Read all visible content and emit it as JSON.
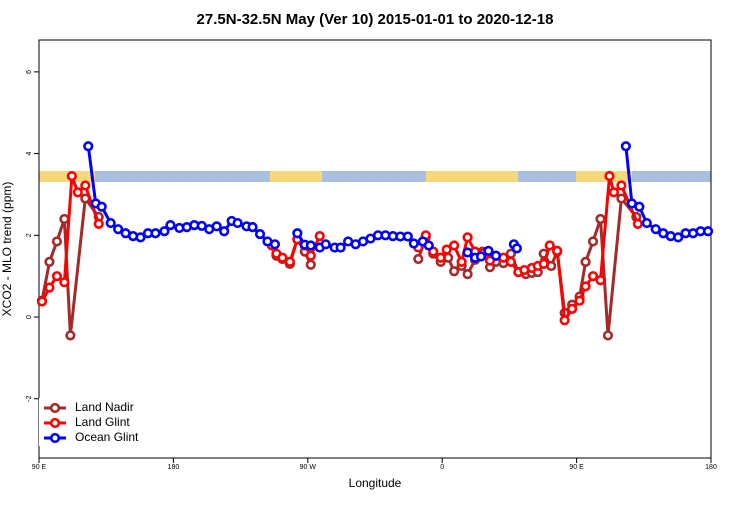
{
  "chart_data": {
    "type": "line",
    "title": "27.5N-32.5N May (Ver 10)   2015-01-01 to 2020-12-18",
    "xlabel": "Longitude",
    "ylabel": "XCO2 - MLO trend (ppm)",
    "xlim": [
      90,
      540
    ],
    "xticks": [
      {
        "value": 90,
        "label": "90 E"
      },
      180,
      {
        "value": 270,
        "label": "90 W"
      },
      {
        "value": 360,
        "label": "0"
      },
      {
        "value": 450,
        "label": "90 E"
      },
      {
        "value": 540,
        "label": "180"
      }
    ],
    "ylim": [
      -3.45,
      6.78
    ],
    "yticks": [
      -2,
      0,
      2,
      4,
      6
    ],
    "legend": "bottom-left",
    "series": [
      {
        "name": "Land Nadir",
        "color": "#a52a2a",
        "x": [
          92,
          97,
          102,
          107,
          111,
          121,
          130,
          null,
          246,
          249,
          253,
          258,
          263,
          268,
          272,
          null,
          344,
          349,
          354,
          359,
          364,
          368,
          373,
          377,
          382,
          387,
          392,
          396,
          401,
          406,
          411,
          416,
          420,
          424,
          428,
          433,
          437,
          442,
          447,
          452,
          456,
          461,
          466,
          471,
          480,
          490
        ],
        "values": [
          0.4,
          1.35,
          1.85,
          2.4,
          -0.45,
          2.9,
          2.45,
          null,
          1.75,
          1.5,
          1.42,
          1.3,
          1.9,
          1.6,
          1.28,
          null,
          1.42,
          1.95,
          1.55,
          1.35,
          1.45,
          1.12,
          1.25,
          1.05,
          1.4,
          1.6,
          1.22,
          1.35,
          1.32,
          1.55,
          1.1,
          1.05,
          1.08,
          1.1,
          1.55,
          1.25,
          1.6,
          0.1,
          0.3,
          0.5,
          1.35,
          1.85,
          2.4,
          -0.45,
          2.9,
          2.45
        ]
      },
      {
        "name": "Land Glint",
        "color": "#ff0000",
        "x": [
          92,
          97,
          102,
          107,
          112,
          116,
          121,
          130,
          null,
          246,
          249,
          253,
          258,
          263,
          268,
          272,
          278,
          null,
          344,
          349,
          354,
          359,
          363,
          368,
          373,
          377,
          382,
          387,
          392,
          396,
          401,
          406,
          411,
          415,
          420,
          424,
          428,
          432,
          437,
          442,
          447,
          452,
          456,
          461,
          466,
          472,
          475,
          480,
          491
        ],
        "values": [
          0.38,
          0.72,
          1.0,
          0.85,
          3.45,
          3.05,
          3.22,
          2.28,
          null,
          1.75,
          1.55,
          1.45,
          1.35,
          1.9,
          1.75,
          1.5,
          1.98,
          null,
          1.7,
          2.0,
          1.6,
          1.45,
          1.65,
          1.75,
          1.35,
          1.95,
          1.6,
          1.55,
          1.38,
          1.5,
          1.45,
          1.35,
          1.1,
          1.15,
          1.2,
          1.25,
          1.3,
          1.75,
          1.62,
          -0.08,
          0.2,
          0.4,
          0.75,
          1.0,
          0.9,
          3.45,
          3.05,
          3.22,
          2.28
        ]
      },
      {
        "name": "Ocean Glint",
        "color": "#0000ff",
        "x": [
          123,
          128,
          132,
          138,
          143,
          148,
          153,
          158,
          163,
          168,
          174,
          178,
          184,
          189,
          194,
          199,
          204,
          209,
          214,
          219,
          223,
          229,
          233,
          238,
          243,
          248,
          null,
          263,
          268,
          272,
          278,
          282,
          288,
          292,
          297,
          302,
          307,
          312,
          317,
          322,
          327,
          332,
          337,
          341,
          347,
          351,
          null,
          377,
          382,
          386,
          391,
          396,
          null,
          408,
          410,
          null,
          483,
          487,
          492,
          497,
          503,
          508,
          513,
          518,
          523,
          528,
          533,
          538
        ],
        "values": [
          4.18,
          2.78,
          2.7,
          2.3,
          2.15,
          2.05,
          1.98,
          1.95,
          2.05,
          2.05,
          2.1,
          2.25,
          2.18,
          2.2,
          2.25,
          2.23,
          2.15,
          2.22,
          2.1,
          2.35,
          2.3,
          2.22,
          2.2,
          2.03,
          1.85,
          1.78,
          null,
          2.05,
          1.77,
          1.75,
          1.7,
          1.78,
          1.7,
          1.7,
          1.85,
          1.78,
          1.85,
          1.92,
          2.0,
          2.0,
          1.98,
          1.97,
          1.97,
          1.8,
          1.85,
          1.75,
          null,
          1.58,
          1.45,
          1.48,
          1.62,
          1.5,
          null,
          1.78,
          1.68,
          null,
          4.18,
          2.78,
          2.7,
          2.3,
          2.15,
          2.05,
          1.98,
          1.95,
          2.05,
          2.05,
          2.1,
          2.1
        ]
      }
    ]
  }
}
